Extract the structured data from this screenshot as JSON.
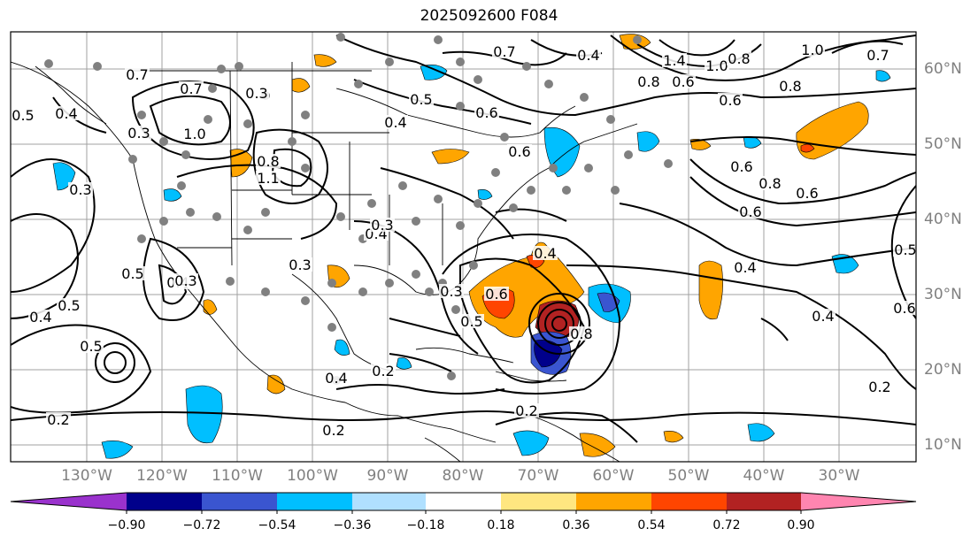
{
  "title": "2025092600 F084",
  "lon_labels": [
    "130°W",
    "120°W",
    "110°W",
    "100°W",
    "90°W",
    "80°W",
    "70°W",
    "60°W",
    "50°W",
    "40°W",
    "30°W"
  ],
  "lat_labels": [
    "60°N",
    "50°N",
    "40°N",
    "30°N",
    "20°N",
    "10°N"
  ],
  "colorbar": {
    "ticks": [
      "−0.90",
      "−0.72",
      "−0.54",
      "−0.36",
      "−0.18",
      "0.18",
      "0.36",
      "0.54",
      "0.72",
      "0.90"
    ],
    "colors": [
      "#9a32cd",
      "#00008b",
      "#3a55d0",
      "#00bfff",
      "#b0e0ff",
      "#ffffff",
      "#ffe680",
      "#ffa500",
      "#ff4500",
      "#b22222",
      "#ff85b0"
    ]
  },
  "contour_labels": [
    "0.7",
    "0.4",
    "1.4",
    "1.0",
    "0.8",
    "0.6",
    "0.8",
    "1.0",
    "0.7",
    "0.8",
    "0.6",
    "0.6",
    "0.7",
    "0.5",
    "0.4",
    "0.5",
    "0.4",
    "0.3",
    "0.7",
    "0.3",
    "1.0",
    "0.8",
    "0.6",
    "1.1",
    "0.6",
    "0.4",
    "0.5",
    "0.4",
    "0.3",
    "0.5",
    "0.4",
    "0.5",
    "0.6",
    "0.3",
    "0.2",
    "0.4",
    "0.3",
    "0.5",
    "0.8",
    "0.6",
    "0.8",
    "0.6",
    "0.4",
    "0.5",
    "0.4",
    "0.6",
    "0.3",
    "0.4",
    "0.2",
    "0.2",
    "0.2",
    "0.2",
    "0.3"
  ]
}
